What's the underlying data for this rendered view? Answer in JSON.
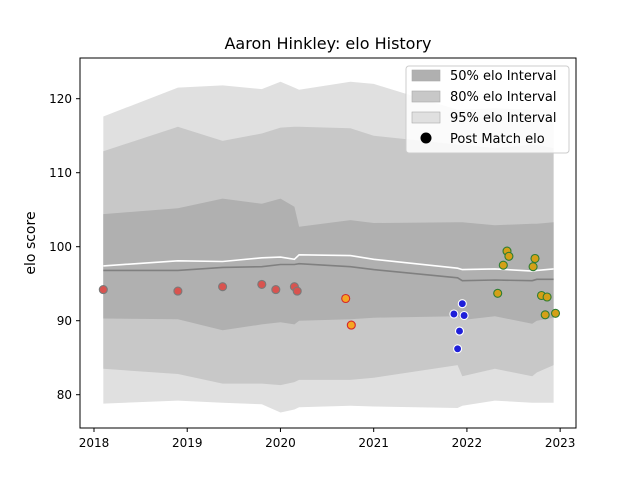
{
  "chart_data": {
    "type": "scatter",
    "title": "Aaron Hinkley: elo History",
    "ylabel": "elo score",
    "xlabel": "",
    "xlim": [
      2017.85,
      2023.17
    ],
    "ylim": [
      75.5,
      125.5
    ],
    "x_ticks": [
      2018,
      2019,
      2020,
      2021,
      2022,
      2023
    ],
    "y_ticks": [
      80,
      90,
      100,
      110,
      120
    ],
    "grid": false,
    "legend_position": "top-right",
    "legend": [
      {
        "label": "50% elo Interval",
        "kind": "patch",
        "color": "#b0b0b0"
      },
      {
        "label": "80% elo Interval",
        "kind": "patch",
        "color": "#c8c8c8"
      },
      {
        "label": "95% elo Interval",
        "kind": "patch",
        "color": "#e0e0e0"
      },
      {
        "label": "Post Match elo",
        "kind": "marker",
        "color": "#000000"
      }
    ],
    "band_x": [
      2018.1,
      2018.9,
      2019.38,
      2019.8,
      2020.0,
      2020.15,
      2020.2,
      2020.75,
      2021.0,
      2021.9,
      2021.95,
      2022.3,
      2022.7,
      2022.75,
      2022.93
    ],
    "bands": {
      "p95_lower": [
        78.8,
        79.2,
        78.9,
        78.7,
        77.6,
        78.0,
        78.3,
        78.5,
        78.4,
        78.2,
        78.5,
        79.2,
        78.9,
        78.9,
        78.9
      ],
      "p95_upper": [
        117.6,
        121.5,
        121.8,
        121.3,
        122.3,
        121.5,
        121.2,
        122.3,
        122.0,
        118.5,
        118.5,
        118.7,
        118.5,
        118.5,
        118.5
      ],
      "p80_lower": [
        83.5,
        82.8,
        81.5,
        81.5,
        81.3,
        81.7,
        82.0,
        82.0,
        82.3,
        84.0,
        82.5,
        83.5,
        82.5,
        83.0,
        84.0
      ],
      "p80_upper": [
        112.9,
        116.2,
        114.3,
        115.3,
        116.1,
        116.2,
        116.2,
        116.0,
        115.0,
        113.8,
        113.8,
        113.3,
        113.8,
        113.8,
        113.3
      ],
      "p50_lower": [
        90.3,
        90.2,
        88.7,
        89.5,
        89.8,
        89.5,
        90.0,
        90.2,
        90.4,
        90.6,
        90.1,
        90.6,
        89.6,
        90.0,
        90.4
      ],
      "p50_upper": [
        104.4,
        105.2,
        106.5,
        105.8,
        106.5,
        105.4,
        102.7,
        103.6,
        103.2,
        103.3,
        103.3,
        102.9,
        103.1,
        103.1,
        103.3
      ]
    },
    "series": [
      {
        "line_role": "median",
        "color": "#808080",
        "x": [
          2018.1,
          2018.9,
          2019.38,
          2019.8,
          2020.0,
          2020.15,
          2020.2,
          2020.75,
          2021.0,
          2021.9,
          2021.95,
          2022.3,
          2022.7,
          2022.75,
          2022.93
        ],
        "y": [
          96.8,
          96.8,
          97.2,
          97.3,
          97.6,
          97.6,
          97.7,
          97.3,
          96.9,
          95.8,
          95.4,
          95.5,
          95.4,
          95.6,
          95.6
        ]
      },
      {
        "line_role": "mean",
        "color": "#ffffff",
        "x": [
          2018.1,
          2018.9,
          2019.38,
          2019.8,
          2020.0,
          2020.15,
          2020.2,
          2020.75,
          2021.0,
          2021.9,
          2021.95,
          2022.3,
          2022.7,
          2022.75,
          2022.93
        ],
        "y": [
          97.4,
          98.1,
          98.0,
          98.5,
          98.6,
          98.3,
          98.9,
          98.8,
          98.3,
          97.1,
          96.9,
          97.0,
          96.7,
          96.8,
          97.0
        ]
      }
    ],
    "point_groups": [
      {
        "fill": "#d9534f",
        "edge": "#7a7a7a",
        "points": [
          [
            2018.1,
            94.2
          ],
          [
            2018.9,
            94.0
          ],
          [
            2019.38,
            94.6
          ],
          [
            2019.8,
            94.9
          ],
          [
            2019.95,
            94.2
          ],
          [
            2020.15,
            94.6
          ],
          [
            2020.18,
            94.0
          ]
        ]
      },
      {
        "fill": "#f5a623",
        "edge": "#d62728",
        "points": [
          [
            2020.7,
            93.0
          ],
          [
            2020.76,
            89.4
          ]
        ]
      },
      {
        "fill": "#1f1fd9",
        "edge": "#ffffff",
        "points": [
          [
            2021.86,
            90.9
          ],
          [
            2021.9,
            86.2
          ],
          [
            2021.92,
            88.6
          ],
          [
            2021.95,
            92.3
          ],
          [
            2021.97,
            90.7
          ]
        ]
      },
      {
        "fill": "#d4a017",
        "edge": "#2e7d32",
        "points": [
          [
            2022.33,
            93.7
          ],
          [
            2022.39,
            97.5
          ],
          [
            2022.43,
            99.4
          ],
          [
            2022.45,
            98.7
          ],
          [
            2022.71,
            97.3
          ],
          [
            2022.73,
            98.4
          ],
          [
            2022.8,
            93.4
          ],
          [
            2022.84,
            90.8
          ],
          [
            2022.86,
            93.2
          ],
          [
            2022.95,
            91.0
          ]
        ]
      }
    ]
  }
}
